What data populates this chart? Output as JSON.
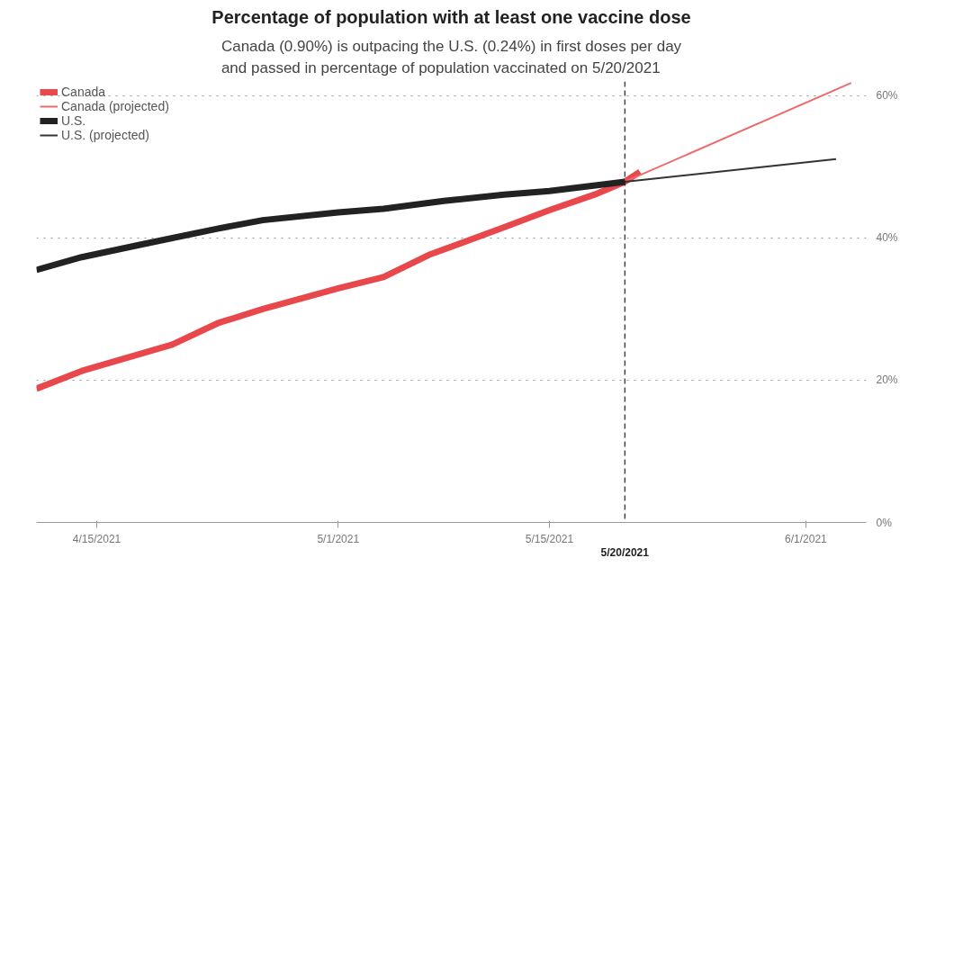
{
  "chart_data": {
    "type": "line",
    "title": "Percentage of population with at least one vaccine dose",
    "subtitle": "Canada (0.90%) is outpacing the U.S. (0.24%) in first doses per day\nand passed in percentage of population vaccinated on 5/20/2021",
    "series": [
      {
        "name": "Canada",
        "color": "#e8484c",
        "x": [
          "2021-04-11",
          "2021-04-14",
          "2021-04-20",
          "2021-04-23",
          "2021-04-26",
          "2021-05-01",
          "2021-05-04",
          "2021-05-07",
          "2021-05-12",
          "2021-05-15",
          "2021-05-18",
          "2021-05-20",
          "2021-05-21"
        ],
        "values": [
          18.8,
          21.3,
          25.0,
          28.0,
          30.0,
          32.9,
          34.5,
          37.6,
          41.5,
          43.9,
          46.1,
          47.9,
          49.3
        ]
      },
      {
        "name": "Canada (projected)",
        "color": "#ee6a6a",
        "x": [
          "2021-05-20",
          "2021-06-04"
        ],
        "values": [
          47.9,
          61.8
        ]
      },
      {
        "name": "U.S.",
        "color": "#222222",
        "x": [
          "2021-04-11",
          "2021-04-14",
          "2021-04-18",
          "2021-04-23",
          "2021-04-26",
          "2021-05-01",
          "2021-05-04",
          "2021-05-08",
          "2021-05-12",
          "2021-05-15",
          "2021-05-20"
        ],
        "values": [
          35.5,
          37.3,
          39.1,
          41.3,
          42.5,
          43.6,
          44.1,
          45.2,
          46.1,
          46.6,
          47.9
        ]
      },
      {
        "name": "U.S. (projected)",
        "color": "#333333",
        "x": [
          "2021-05-20",
          "2021-06-03"
        ],
        "values": [
          47.9,
          51.1
        ]
      }
    ],
    "xlim": [
      "2021-04-11",
      "2021-06-05"
    ],
    "xticks": [
      {
        "value": "2021-04-15",
        "label": "4/15/2021"
      },
      {
        "value": "2021-05-01",
        "label": "5/1/2021"
      },
      {
        "value": "2021-05-15",
        "label": "5/15/2021"
      },
      {
        "value": "2021-06-01",
        "label": "6/1/2021"
      }
    ],
    "ylim": [
      0,
      62
    ],
    "yticks": [
      {
        "value": 0,
        "label": "0%"
      },
      {
        "value": 20,
        "label": "20%"
      },
      {
        "value": 40,
        "label": "40%"
      },
      {
        "value": 60,
        "label": "60%"
      }
    ],
    "ref_lines": [
      {
        "axis": "x",
        "value": "2021-05-20",
        "label": "5/20/2021",
        "color": "#222222",
        "line_style": "dashed"
      }
    ],
    "grid": "y",
    "legend": "top left",
    "line_style": "solid"
  }
}
